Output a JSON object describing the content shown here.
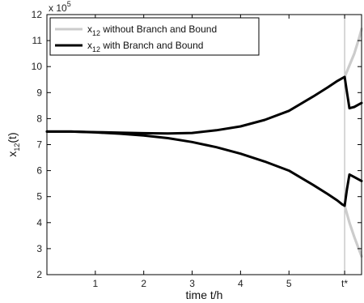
{
  "chart_data": {
    "type": "line",
    "xlabel": "time t/h",
    "ylabel": "x",
    "ylabel_sub": "12",
    "ylabel_tail": "(t)",
    "y_exponent_label": "x 10",
    "y_exponent_power": "5",
    "xlim": [
      0,
      6.5
    ],
    "ylim": [
      2,
      12
    ],
    "x_ticks": [
      1,
      2,
      3,
      4,
      5,
      6.15
    ],
    "x_tick_labels": [
      "1",
      "2",
      "3",
      "4",
      "5",
      "t*"
    ],
    "y_ticks": [
      2,
      3,
      4,
      5,
      6,
      7,
      8,
      9,
      10,
      11,
      12
    ],
    "y_tick_labels": [
      "2",
      "3",
      "4",
      "5",
      "6",
      "7",
      "8",
      "9",
      "10",
      "11",
      "12"
    ],
    "t_star": 6.15,
    "legend": {
      "placement": "top-left",
      "entries": [
        {
          "prefix": "x",
          "sub": "12",
          "text": " without Branch and Bound",
          "color": "#cccccc"
        },
        {
          "prefix": "x",
          "sub": "12",
          "text": " with Branch and Bound",
          "color": "#000000"
        }
      ]
    },
    "series": [
      {
        "name": "x12 without Branch and Bound",
        "color": "#cccccc",
        "x": [
          6.15,
          6.25,
          6.35,
          6.45,
          6.5
        ],
        "y": [
          9.6,
          10.05,
          10.5,
          11.1,
          11.45
        ]
      },
      {
        "name": "x12 without Branch and Bound",
        "color": "#cccccc",
        "x": [
          6.15,
          6.25,
          6.35,
          6.45,
          6.5
        ],
        "y": [
          4.65,
          4.0,
          3.45,
          2.95,
          2.7
        ]
      },
      {
        "name": "x12 with Branch and Bound",
        "color": "#000000",
        "x": [
          0,
          0.5,
          1,
          1.5,
          2,
          2.5,
          3,
          3.5,
          4,
          4.5,
          5,
          5.5,
          5.8,
          6.0,
          6.1,
          6.15,
          6.2,
          6.25,
          6.35,
          6.45,
          6.5
        ],
        "y": [
          7.5,
          7.5,
          7.48,
          7.46,
          7.44,
          7.43,
          7.45,
          7.55,
          7.7,
          7.95,
          8.3,
          8.85,
          9.2,
          9.45,
          9.55,
          9.6,
          9.0,
          8.4,
          8.45,
          8.55,
          8.6
        ]
      },
      {
        "name": "x12 with Branch and Bound",
        "color": "#000000",
        "x": [
          0,
          0.5,
          1,
          1.5,
          2,
          2.5,
          3,
          3.5,
          4,
          4.5,
          5,
          5.5,
          5.8,
          6.0,
          6.1,
          6.15,
          6.2,
          6.25,
          6.35,
          6.45,
          6.5
        ],
        "y": [
          7.5,
          7.5,
          7.47,
          7.42,
          7.35,
          7.25,
          7.1,
          6.9,
          6.65,
          6.35,
          6.0,
          5.45,
          5.1,
          4.85,
          4.7,
          4.65,
          5.3,
          5.85,
          5.75,
          5.65,
          5.6
        ]
      }
    ],
    "grid": false
  }
}
